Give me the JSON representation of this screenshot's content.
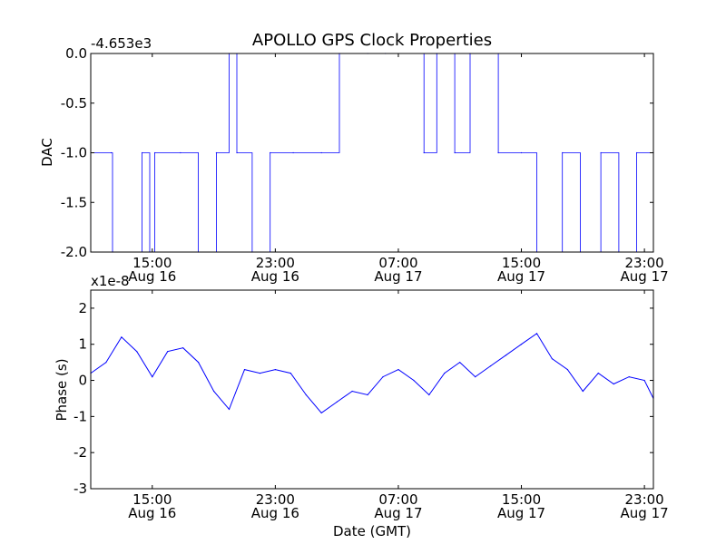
{
  "figure": {
    "title": "APOLLO GPS Clock Properties",
    "background": "#ffffff",
    "line_color": "#0000ff",
    "axes_color": "#000000"
  },
  "chart_data": [
    {
      "type": "line",
      "ylabel": "DAC",
      "offset_text": "-4.653e3",
      "ylim": [
        -2.0,
        0.0
      ],
      "yticks": [
        0.0,
        -0.5,
        -1.0,
        -1.5,
        -2.0
      ],
      "ytick_labels": [
        "0.0",
        "-0.5",
        "-1.0",
        "-1.5",
        "-2.0"
      ],
      "xlim": [
        "2012-08-16 11:00",
        "2012-08-17 23:35"
      ],
      "xticks": [
        "2012-08-16 15:00",
        "2012-08-16 23:00",
        "2012-08-17 07:00",
        "2012-08-17 15:00",
        "2012-08-17 23:00"
      ],
      "xtick_labels": [
        [
          "15:00",
          "Aug 16"
        ],
        [
          "23:00",
          "Aug 16"
        ],
        [
          "07:00",
          "Aug 17"
        ],
        [
          "15:00",
          "Aug 17"
        ],
        [
          "23:00",
          "Aug 17"
        ]
      ],
      "grid": false,
      "series": [
        {
          "color": "#0000ff",
          "x": [
            "2012-08-16 11:00",
            "2012-08-16 12:20",
            "2012-08-16 12:25",
            "2012-08-16 14:20",
            "2012-08-16 14:50",
            "2012-08-16 15:10",
            "2012-08-16 16:50",
            "2012-08-16 18:00",
            "2012-08-16 19:10",
            "2012-08-16 20:00",
            "2012-08-16 20:30",
            "2012-08-16 21:30",
            "2012-08-16 22:40",
            "2012-08-17 00:10",
            "2012-08-17 02:00",
            "2012-08-17 03:10",
            "2012-08-17 05:00",
            "2012-08-17 06:10",
            "2012-08-17 08:40",
            "2012-08-17 09:30",
            "2012-08-17 10:40",
            "2012-08-17 11:40",
            "2012-08-17 13:30",
            "2012-08-17 15:00",
            "2012-08-17 16:00",
            "2012-08-17 17:40",
            "2012-08-17 18:50",
            "2012-08-17 20:10",
            "2012-08-17 21:20",
            "2012-08-17 22:30",
            "2012-08-17 23:35"
          ],
          "values": [
            -1.0,
            -1.0,
            -2.0,
            -1.0,
            -2.0,
            -1.0,
            -1.0,
            -2.0,
            -1.0,
            0.0,
            -1.0,
            -2.0,
            -1.0,
            -1.0,
            -1.0,
            0.0,
            0.0,
            0.0,
            -1.0,
            0.0,
            -1.0,
            0.0,
            -1.0,
            -1.0,
            -2.0,
            -1.0,
            -2.0,
            -1.0,
            -2.0,
            -1.0,
            -1.0
          ]
        }
      ]
    },
    {
      "type": "line",
      "ylabel": "Phase (s)",
      "xlabel": "Date (GMT)",
      "offset_text": "x1e-8",
      "ylim": [
        -3,
        2.5
      ],
      "yticks": [
        2,
        1,
        0,
        -1,
        -2,
        -3
      ],
      "ytick_labels": [
        "2",
        "1",
        "0",
        "-1",
        "-2",
        "-3"
      ],
      "xlim": [
        "2012-08-16 11:00",
        "2012-08-17 23:35"
      ],
      "xticks": [
        "2012-08-16 15:00",
        "2012-08-16 23:00",
        "2012-08-17 07:00",
        "2012-08-17 15:00",
        "2012-08-17 23:00"
      ],
      "xtick_labels": [
        [
          "15:00",
          "Aug 16"
        ],
        [
          "23:00",
          "Aug 16"
        ],
        [
          "07:00",
          "Aug 17"
        ],
        [
          "15:00",
          "Aug 17"
        ],
        [
          "23:00",
          "Aug 17"
        ]
      ],
      "grid": false,
      "series": [
        {
          "color": "#0000ff",
          "x": [
            "2012-08-16 11:00",
            "2012-08-16 12:00",
            "2012-08-16 13:00",
            "2012-08-16 14:00",
            "2012-08-16 15:00",
            "2012-08-16 16:00",
            "2012-08-16 17:00",
            "2012-08-16 18:00",
            "2012-08-16 19:00",
            "2012-08-16 20:00",
            "2012-08-16 21:00",
            "2012-08-16 22:00",
            "2012-08-16 23:00",
            "2012-08-17 00:00",
            "2012-08-17 01:00",
            "2012-08-17 02:00",
            "2012-08-17 03:00",
            "2012-08-17 04:00",
            "2012-08-17 05:00",
            "2012-08-17 06:00",
            "2012-08-17 07:00",
            "2012-08-17 08:00",
            "2012-08-17 09:00",
            "2012-08-17 10:00",
            "2012-08-17 11:00",
            "2012-08-17 12:00",
            "2012-08-17 13:00",
            "2012-08-17 14:00",
            "2012-08-17 15:00",
            "2012-08-17 16:00",
            "2012-08-17 17:00",
            "2012-08-17 18:00",
            "2012-08-17 19:00",
            "2012-08-17 20:00",
            "2012-08-17 21:00",
            "2012-08-17 22:00",
            "2012-08-17 23:00",
            "2012-08-17 23:35"
          ],
          "values": [
            0.2,
            0.5,
            1.2,
            0.8,
            0.1,
            0.8,
            0.9,
            0.5,
            -0.3,
            -0.8,
            0.3,
            0.2,
            0.3,
            0.2,
            -0.4,
            -0.9,
            -0.6,
            -0.3,
            -0.4,
            0.1,
            0.3,
            0.0,
            -0.4,
            0.2,
            0.5,
            0.1,
            0.4,
            0.7,
            1.0,
            1.3,
            0.6,
            0.3,
            -0.3,
            0.2,
            -0.1,
            0.1,
            0.0,
            -0.5
          ]
        }
      ]
    }
  ]
}
